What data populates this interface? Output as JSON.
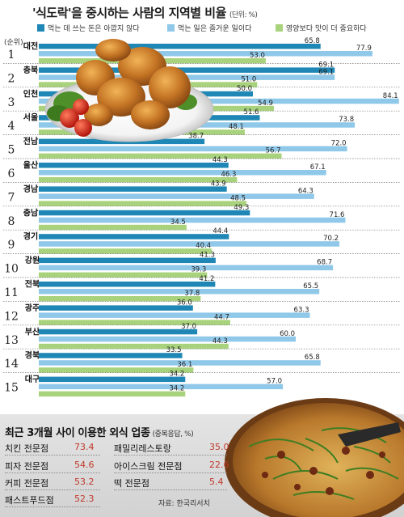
{
  "title": "'식도락'을 중시하는 사람의 지역별 비율",
  "unit": "(단위: %)",
  "rank_header": "(순위)",
  "colors": {
    "series1": "#1f87b5",
    "series2": "#8fc8e8",
    "series3": "#a8d37c"
  },
  "chart_data": {
    "type": "bar",
    "orientation": "horizontal",
    "categories": [
      "대전",
      "충북",
      "인천",
      "서울",
      "전남",
      "울산",
      "경남",
      "충남",
      "경기",
      "강원",
      "전북",
      "광주",
      "부산",
      "경북",
      "대구"
    ],
    "ranks": [
      "1",
      "2",
      "3",
      "4",
      "5",
      "6",
      "7",
      "8",
      "9",
      "10",
      "11",
      "12",
      "13",
      "14",
      "15"
    ],
    "series": [
      {
        "name": "먹는 데 쓰는 돈은 아깝지 않다",
        "values": [
          65.8,
          69.1,
          50.0,
          51.6,
          38.7,
          44.3,
          43.9,
          49.3,
          44.4,
          41.3,
          41.2,
          36.0,
          37.0,
          33.5,
          34.2
        ]
      },
      {
        "name": "먹는 일은 즐거운 일이다",
        "values": [
          77.9,
          69.1,
          84.1,
          73.8,
          72.0,
          67.1,
          64.3,
          71.6,
          70.2,
          68.7,
          65.5,
          63.3,
          60.0,
          65.8,
          57.0
        ]
      },
      {
        "name": "영양보다 맛이 더 중요하다",
        "values": [
          53.0,
          51.0,
          54.9,
          48.1,
          56.7,
          46.3,
          48.5,
          34.5,
          40.4,
          39.3,
          37.8,
          44.7,
          44.3,
          36.1,
          34.2
        ]
      }
    ],
    "value_labels": [
      [
        "65.8",
        "69.1",
        "50.0",
        "51.6",
        "38.7",
        "44.3",
        "43.9",
        "49.3",
        "44.4",
        "41.3",
        "41.2",
        "36.0",
        "37.0",
        "33.5",
        "34.2"
      ],
      [
        "77.9",
        "69.1",
        "84.1",
        "73.8",
        "72.0",
        "67.1",
        "64.3",
        "71.6",
        "70.2",
        "68.7",
        "65.5",
        "63.3",
        "60.0",
        "65.8",
        "57.0"
      ],
      [
        "53.0",
        "51.0",
        "54.9",
        "48.1",
        "56.7",
        "46.3",
        "48.5",
        "34.5",
        "40.4",
        "39.3",
        "37.8",
        "44.7",
        "44.3",
        "36.1",
        "34.2"
      ]
    ],
    "xlim": [
      0,
      90
    ]
  },
  "restaurants": {
    "title": "최근 3개월 사이 이용한 외식 업종",
    "unit": "(중복응답, %)",
    "left": [
      {
        "name": "치킨 전문점",
        "value": "73.4"
      },
      {
        "name": "피자 전문점",
        "value": "54.6"
      },
      {
        "name": "커피 전문점",
        "value": "53.2"
      },
      {
        "name": "패스트푸드점",
        "value": "52.3"
      }
    ],
    "right": [
      {
        "name": "패밀리레스토랑",
        "value": "35.0"
      },
      {
        "name": "아이스크림 전문점",
        "value": "22.6"
      },
      {
        "name": "떡 전문점",
        "value": "5.4"
      }
    ]
  },
  "source": "자료: 한국리서치"
}
